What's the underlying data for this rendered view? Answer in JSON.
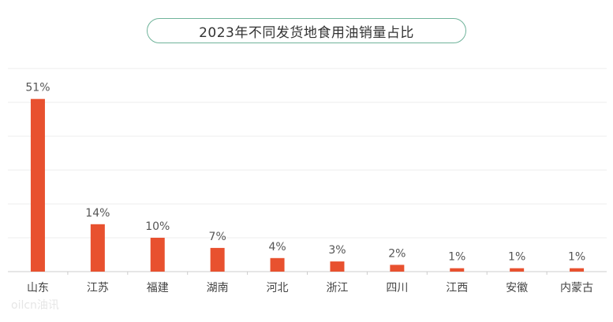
{
  "chart_data": {
    "type": "bar",
    "title": "2023年不同发货地食用油销量占比",
    "categories": [
      "山东",
      "江苏",
      "福建",
      "湖南",
      "河北",
      "浙江",
      "四川",
      "江西",
      "安徽",
      "内蒙古"
    ],
    "values": [
      51,
      14,
      10,
      7,
      4,
      3,
      2,
      1,
      1,
      1
    ],
    "data_labels": [
      "51%",
      "14%",
      "10%",
      "7%",
      "4%",
      "3%",
      "2%",
      "1%",
      "1%",
      "1%"
    ],
    "ylim": [
      0,
      60
    ],
    "grid": true,
    "legend": "none",
    "bar_color": "#e8512f",
    "grid_color": "#eeeeee",
    "axis_color": "#cccccc"
  },
  "watermark": "oilcn油讯"
}
